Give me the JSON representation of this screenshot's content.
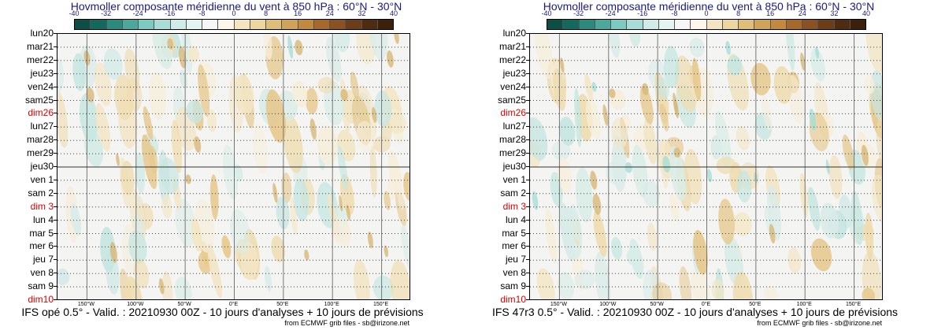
{
  "chart_data": [
    {
      "type": "heatmap",
      "title": "Hovmoller composante méridienne du vent à 850 hPa : 60°N - 30°N",
      "colorbar": {
        "ticks": [
          "-40",
          "-32",
          "-24",
          "-16",
          "-8",
          "0",
          "8",
          "16",
          "24",
          "32",
          "40"
        ],
        "colors": [
          "#0b4f45",
          "#12695e",
          "#2a8a7e",
          "#4aa89d",
          "#7ccbc2",
          "#a8ddd7",
          "#cfece8",
          "#e4f4f1",
          "#f6f6f6",
          "#fbf5ea",
          "#f4e4bf",
          "#ecd69e",
          "#dfbf78",
          "#cfa458",
          "#c18a3c",
          "#a6692a",
          "#8a5220",
          "#6c3d17",
          "#4f2c10",
          "#3c2009"
        ]
      },
      "ylabels": [
        "lun20",
        "mar21",
        "mer22",
        "jeu23",
        "ven24",
        "sam25",
        "dim26",
        "lun27",
        "mar28",
        "mer29",
        "jeu30",
        "ven 1",
        "sam 2",
        "dim 3",
        "lun 4",
        "mar 5",
        "mer 6",
        "jeu 7",
        "ven 8",
        "sam 9",
        "dim10"
      ],
      "sundays": [
        "dim26",
        "dim 3",
        "dim10"
      ],
      "xlabels": [
        "150°W",
        "100°W",
        "50°W",
        "0°E",
        "50°E",
        "100°E",
        "150°E"
      ],
      "xrange": [
        -180,
        180
      ],
      "analysis_forecast_split": "jeu30",
      "footer": "IFS opé 0.5° - Valid. : 20210930 00Z - 10 jours d'analyses + 10 jours de prévisions",
      "credit": "from ECMWF grib files - sb@irizone.net"
    },
    {
      "type": "heatmap",
      "title": "Hovmoller composante méridienne du vent à 850 hPa : 60°N - 30°N",
      "colorbar": {
        "ticks": [
          "-40",
          "-32",
          "-24",
          "-16",
          "-8",
          "0",
          "8",
          "16",
          "24",
          "32",
          "40"
        ],
        "colors": [
          "#0b4f45",
          "#12695e",
          "#2a8a7e",
          "#4aa89d",
          "#7ccbc2",
          "#a8ddd7",
          "#cfece8",
          "#e4f4f1",
          "#f6f6f6",
          "#fbf5ea",
          "#f4e4bf",
          "#ecd69e",
          "#dfbf78",
          "#cfa458",
          "#c18a3c",
          "#a6692a",
          "#8a5220",
          "#6c3d17",
          "#4f2c10",
          "#3c2009"
        ]
      },
      "ylabels": [
        "lun20",
        "mar21",
        "mer22",
        "jeu23",
        "ven24",
        "sam25",
        "dim26",
        "lun27",
        "mar28",
        "mer29",
        "jeu30",
        "ven 1",
        "sam 2",
        "dim 3",
        "lun 4",
        "mar 5",
        "mer 6",
        "jeu 7",
        "ven 8",
        "sam 9",
        "dim10"
      ],
      "sundays": [
        "dim26",
        "dim 3",
        "dim10"
      ],
      "xlabels": [
        "150°W",
        "100°W",
        "50°W",
        "0°E",
        "50°E",
        "100°E",
        "150°E"
      ],
      "xrange": [
        -180,
        180
      ],
      "analysis_forecast_split": "jeu30",
      "footer": "IFS 47r3 0.5° - Valid. : 20210930 00Z - 10 jours d'analyses + 10 jours de prévisions",
      "credit": "from ECMWF grib files - sb@irizone.net"
    }
  ]
}
